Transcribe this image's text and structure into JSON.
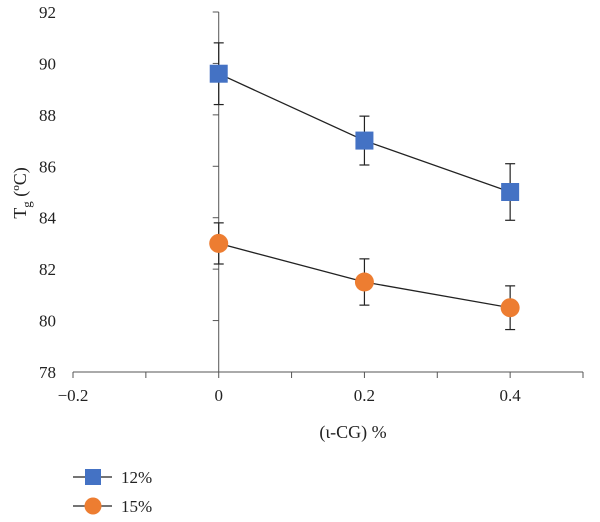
{
  "chart_data": {
    "type": "scatter",
    "title": "",
    "xlabel": "(ι-CG) %",
    "ylabel": {
      "main": "T",
      "subscript": "g",
      "unit": " (ºC)"
    },
    "xlim": [
      -0.2,
      0.5
    ],
    "ylim": [
      78,
      92
    ],
    "xticks": [
      -0.2,
      0,
      0.2,
      0.4
    ],
    "xtick_labels": [
      "−0.2",
      "0",
      "0.2",
      "0.4"
    ],
    "yticks": [
      78,
      80,
      82,
      84,
      86,
      88,
      90,
      92
    ],
    "ytick_labels": [
      "78",
      "80",
      "82",
      "84",
      "86",
      "88",
      "90",
      "92"
    ],
    "x_minor_ticks": [
      -0.1,
      0.1,
      0.3,
      0.5
    ],
    "grid": false,
    "legend_position": "bottom-left",
    "series": [
      {
        "name": "12%",
        "marker": "square",
        "color": "#4472C4",
        "x": [
          0,
          0.2,
          0.4
        ],
        "y": [
          89.6,
          87.0,
          85.0
        ],
        "error": [
          1.2,
          0.95,
          1.1
        ]
      },
      {
        "name": "15%",
        "marker": "circle",
        "color": "#ED7D31",
        "x": [
          0,
          0.2,
          0.4
        ],
        "y": [
          83.0,
          81.5,
          80.5
        ],
        "error": [
          0.8,
          0.9,
          0.85
        ]
      }
    ]
  }
}
